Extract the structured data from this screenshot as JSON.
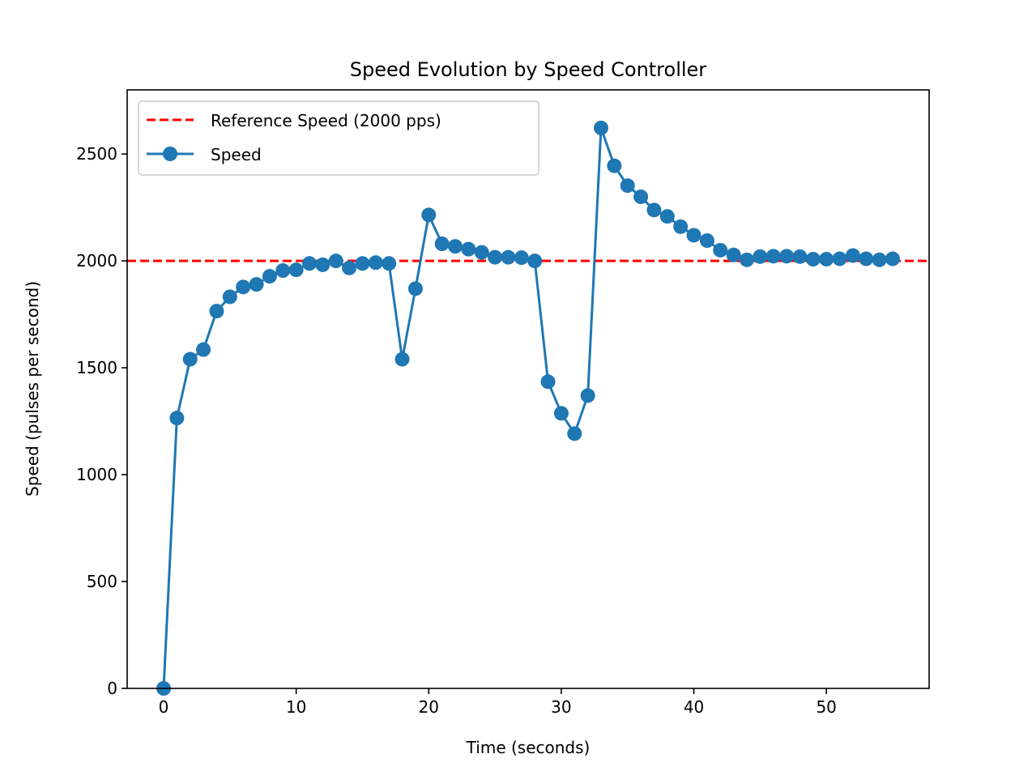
{
  "chart_data": {
    "type": "line",
    "title": "Speed Evolution by Speed Controller",
    "xlabel": "Time (seconds)",
    "ylabel": "Speed (pulses per second)",
    "xlim": [
      -2.75,
      57.75
    ],
    "ylim": [
      0,
      2800
    ],
    "xticks": [
      0,
      10,
      20,
      30,
      40,
      50
    ],
    "yticks": [
      0,
      500,
      1000,
      1500,
      2000,
      2500
    ],
    "grid": false,
    "legend_position": "top-left",
    "reference": {
      "name": "Reference Speed (2000 pps)",
      "value": 2000,
      "color": "#ff0000",
      "style": "dashed"
    },
    "series": [
      {
        "name": "Speed",
        "color": "#1f77b4",
        "marker": "circle",
        "x": [
          0,
          1,
          2,
          3,
          4,
          5,
          6,
          7,
          8,
          9,
          10,
          11,
          12,
          13,
          14,
          15,
          16,
          17,
          18,
          19,
          20,
          21,
          22,
          23,
          24,
          25,
          26,
          27,
          28,
          29,
          30,
          31,
          32,
          33,
          34,
          35,
          36,
          37,
          38,
          39,
          40,
          41,
          42,
          43,
          44,
          45,
          46,
          47,
          48,
          49,
          50,
          51,
          52,
          53,
          54,
          55
        ],
        "values": [
          0,
          1265,
          1540,
          1585,
          1765,
          1832,
          1878,
          1890,
          1928,
          1955,
          1958,
          1988,
          1982,
          2000,
          1967,
          1988,
          1992,
          1988,
          1540,
          1870,
          2215,
          2080,
          2068,
          2055,
          2040,
          2017,
          2017,
          2015,
          2000,
          1435,
          1287,
          1192,
          1370,
          2622,
          2445,
          2352,
          2300,
          2238,
          2208,
          2160,
          2120,
          2095,
          2050,
          2028,
          2005,
          2020,
          2022,
          2022,
          2020,
          2008,
          2008,
          2010,
          2025,
          2010,
          2005,
          2010
        ]
      }
    ]
  }
}
